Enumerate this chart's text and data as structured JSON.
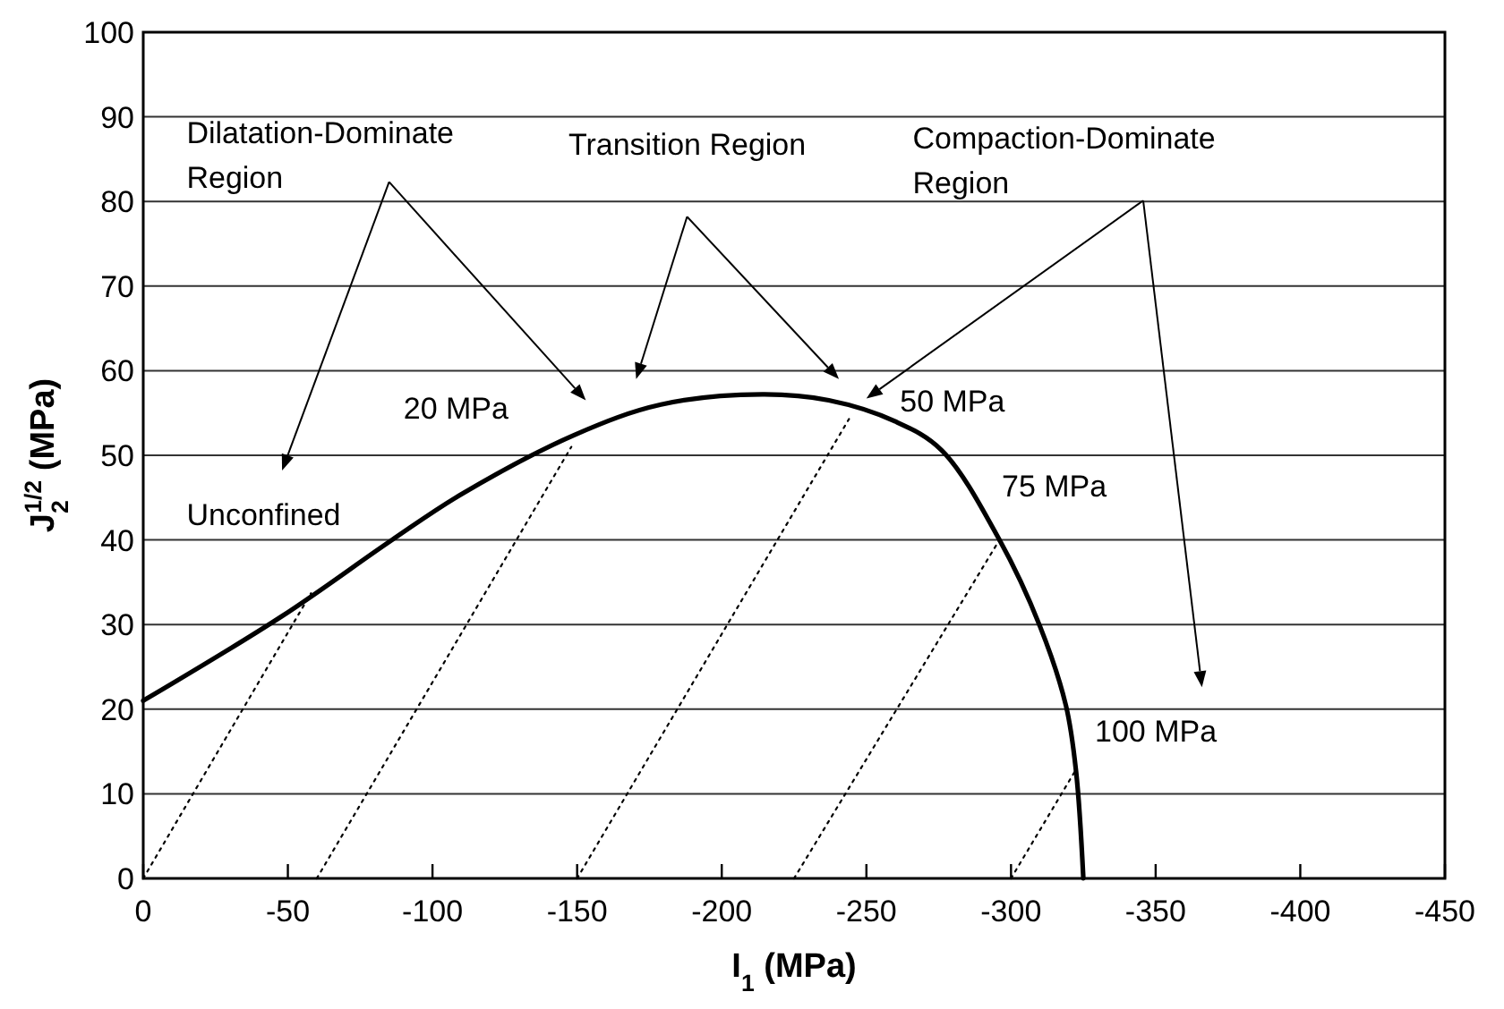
{
  "chart_data": {
    "type": "line",
    "xlabel": "I$_{1}$ (MPa)",
    "ylabel": "J$_{2}$$^{1/2}$ (MPa)",
    "xlim": [
      0,
      -450
    ],
    "xticks": [
      0,
      -50,
      -100,
      -150,
      -200,
      -250,
      -300,
      -350,
      -400,
      -450
    ],
    "ylim": [
      0,
      100
    ],
    "yticks": [
      0,
      10,
      20,
      30,
      40,
      50,
      60,
      70,
      80,
      90,
      100
    ],
    "grid": "y",
    "marker": "none",
    "series": [
      {
        "color": "#000000",
        "line_style": "solid",
        "x": [
          0,
          -48,
          -86,
          -110,
          -149,
          -179,
          -214,
          -237,
          -260,
          -276,
          -296,
          -310,
          -319,
          -322.5,
          -325
        ],
        "values": [
          21,
          31,
          40,
          45.4,
          52.4,
          56,
          57.2,
          56.5,
          54,
          50.6,
          40,
          29.8,
          20.4,
          12.6,
          0
        ]
      },
      {
        "color": "#000000",
        "line_style": "dotted",
        "x": [
          0,
          -58
        ],
        "values": [
          0,
          33.7
        ]
      },
      {
        "color": "#000000",
        "line_style": "dotted",
        "x": [
          -60,
          -148
        ],
        "values": [
          0,
          51
        ]
      },
      {
        "color": "#000000",
        "line_style": "dotted",
        "x": [
          -150,
          -244
        ],
        "values": [
          0,
          54.3
        ]
      },
      {
        "color": "#000000",
        "line_style": "dotted",
        "x": [
          -225,
          -296
        ],
        "values": [
          0,
          40
        ]
      },
      {
        "color": "#000000",
        "line_style": "dotted",
        "x": [
          -300,
          -322
        ],
        "values": [
          0,
          12.6
        ]
      }
    ],
    "annotations": [
      "Dilatation-Dominate\nRegion",
      "Transition Region",
      "Compaction-Dominate\nRegion",
      "Unconfined",
      "20 MPa",
      "50 MPa",
      "75 MPa",
      "100 MPa"
    ]
  }
}
